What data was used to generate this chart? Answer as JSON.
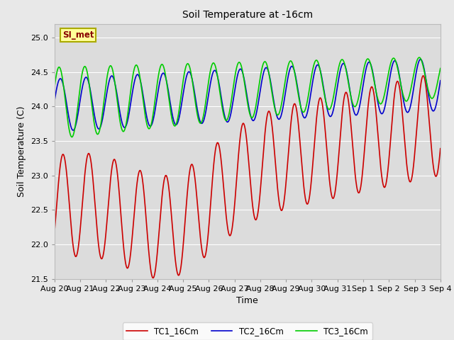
{
  "title": "Soil Temperature at -16cm",
  "xlabel": "Time",
  "ylabel": "Soil Temperature (C)",
  "ylim": [
    21.5,
    25.2
  ],
  "x_tick_labels": [
    "Aug 20",
    "Aug 21",
    "Aug 22",
    "Aug 23",
    "Aug 24",
    "Aug 25",
    "Aug 26",
    "Aug 27",
    "Aug 28",
    "Aug 29",
    "Aug 30",
    "Aug 31",
    "Sep 1",
    "Sep 2",
    "Sep 3",
    "Sep 4"
  ],
  "line_colors": {
    "TC1_16Cm": "#cc0000",
    "TC2_16Cm": "#0000cc",
    "TC3_16Cm": "#00cc00"
  },
  "legend_box_color": "#ffff99",
  "legend_box_edge": "#aaaa00",
  "annotation_text": "SI_met",
  "annotation_color": "#880000",
  "fig_bg_color": "#e8e8e8",
  "plot_bg_color": "#dcdcdc",
  "linewidth": 1.2
}
